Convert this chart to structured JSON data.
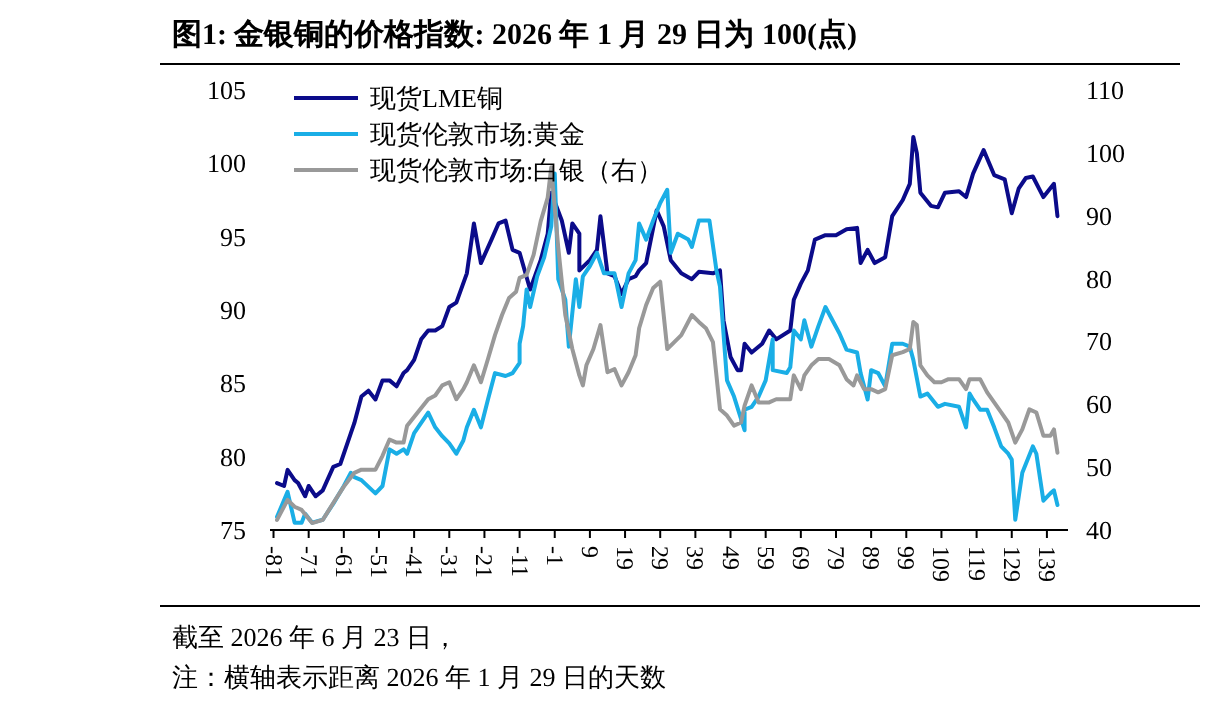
{
  "chart_data": {
    "type": "line",
    "title": "图1:  金银铜的价格指数: 2026 年 1 月 29 日为 100(点)",
    "xlim": [
      -82,
      145
    ],
    "xticks": [
      -81,
      -71,
      -61,
      -51,
      -41,
      -31,
      -21,
      -11,
      -1,
      9,
      19,
      29,
      39,
      49,
      59,
      69,
      79,
      89,
      99,
      109,
      119,
      129,
      139
    ],
    "ylim": [
      75,
      105
    ],
    "yticks": [
      75,
      80,
      85,
      90,
      95,
      100,
      105
    ],
    "y2lim": [
      40,
      110
    ],
    "y2ticks": [
      40,
      50,
      60,
      70,
      80,
      90,
      100,
      110
    ],
    "legend": "top left",
    "series": [
      {
        "name": "现货LME铜",
        "color": "#0b0b8a",
        "x": [
          -80,
          -78,
          -77,
          -75,
          -74,
          -72,
          -71,
          -69,
          -67,
          -64,
          -62,
          -59,
          -58,
          -56,
          -54,
          -52,
          -50,
          -48,
          -46,
          -44,
          -43,
          -41,
          -39,
          -37,
          -35,
          -33,
          -31,
          -29,
          -26,
          -24,
          -22,
          -19,
          -17,
          -15,
          -13,
          -11,
          -8,
          -5,
          -3,
          -2,
          1,
          3,
          4,
          6,
          6,
          9,
          11,
          12,
          14,
          16,
          18,
          20,
          22,
          23,
          25,
          28,
          30,
          32,
          35,
          38,
          40,
          44,
          46,
          47,
          49,
          51,
          52,
          53,
          55,
          58,
          60,
          62,
          66,
          67,
          69,
          71,
          73,
          76,
          79,
          82,
          85,
          86,
          88,
          90,
          93,
          95,
          98,
          100,
          101,
          102,
          103,
          106,
          108,
          110,
          114,
          116,
          118,
          121,
          124,
          127,
          129,
          131,
          133,
          135,
          138,
          141,
          142
        ],
        "values": [
          78.2,
          78.0,
          79.1,
          78.4,
          78.2,
          77.3,
          78.0,
          77.3,
          77.7,
          79.3,
          79.5,
          81.6,
          82.3,
          84.1,
          84.5,
          83.9,
          85.2,
          85.2,
          84.8,
          85.7,
          85.9,
          86.6,
          88.0,
          88.6,
          88.6,
          88.9,
          90.2,
          90.5,
          92.5,
          95.9,
          93.2,
          94.8,
          95.9,
          96.1,
          94.1,
          93.9,
          91.4,
          93.4,
          95.2,
          98.0,
          96.1,
          93.9,
          95.9,
          95.2,
          92.7,
          93.4,
          94.1,
          96.4,
          92.5,
          92.3,
          91.1,
          92.1,
          92.3,
          92.7,
          93.2,
          96.8,
          95.7,
          93.4,
          92.5,
          92.1,
          92.6,
          92.5,
          92.7,
          89.3,
          86.8,
          85.9,
          85.9,
          87.7,
          87.1,
          87.7,
          88.6,
          88.0,
          88.6,
          90.7,
          91.8,
          92.7,
          94.8,
          95.1,
          95.1,
          95.5,
          95.6,
          93.2,
          94.1,
          93.2,
          93.6,
          96.4,
          97.5,
          98.6,
          101.8,
          100.7,
          98.0,
          97.1,
          97.0,
          98.0,
          98.1,
          97.7,
          99.3,
          100.9,
          99.2,
          98.9,
          96.6,
          98.3,
          99.0,
          99.1,
          97.7,
          98.6,
          96.4
        ]
      },
      {
        "name": "现货伦敦市场:黄金",
        "color": "#1aaee6",
        "x": [
          -80,
          -77,
          -75,
          -73,
          -72,
          -70,
          -67,
          -64,
          -61,
          -59,
          -58,
          -56,
          -52,
          -50,
          -48,
          -46,
          -44,
          -43,
          -41,
          -39,
          -37,
          -35,
          -33,
          -31,
          -29,
          -27,
          -26,
          -24,
          -22,
          -20,
          -18,
          -15,
          -13,
          -11,
          -11,
          -10,
          -9,
          -8,
          -6,
          -4,
          -2,
          -1,
          0,
          2,
          3,
          5,
          6,
          7,
          9,
          11,
          13,
          16,
          18,
          20,
          22,
          23,
          25,
          27,
          29,
          31,
          32,
          34,
          37,
          38,
          40,
          41,
          43,
          45,
          46,
          48,
          50,
          53,
          53,
          55,
          57,
          59,
          61,
          61,
          65,
          66,
          67,
          69,
          70,
          72,
          74,
          76,
          78,
          80,
          82,
          85,
          86,
          88,
          89,
          91,
          93,
          95,
          98,
          100,
          101,
          103,
          105,
          108,
          110,
          114,
          116,
          117,
          118,
          120,
          122,
          124,
          126,
          128,
          129,
          130,
          132,
          135,
          136,
          138,
          140,
          141,
          142
        ],
        "values": [
          75.9,
          77.6,
          75.5,
          75.5,
          76.1,
          75.5,
          75.7,
          76.8,
          78.0,
          78.9,
          78.6,
          78.4,
          77.5,
          78.0,
          80.5,
          80.2,
          80.5,
          80.2,
          81.6,
          82.3,
          83.0,
          82.0,
          81.4,
          80.9,
          80.2,
          81.1,
          82.0,
          83.2,
          82.0,
          83.9,
          85.7,
          85.5,
          85.7,
          86.4,
          87.7,
          88.9,
          91.4,
          90.2,
          92.3,
          93.6,
          95.7,
          99.3,
          92.1,
          90.7,
          87.5,
          92.1,
          90.2,
          92.3,
          93.0,
          93.9,
          92.5,
          92.5,
          90.2,
          92.5,
          93.4,
          95.9,
          94.8,
          96.1,
          97.3,
          98.2,
          93.9,
          95.2,
          94.8,
          94.3,
          96.1,
          96.1,
          96.1,
          92.7,
          91.6,
          85.2,
          84.1,
          81.8,
          83.2,
          83.4,
          84.1,
          85.2,
          88.0,
          85.9,
          85.7,
          86.1,
          88.6,
          88.0,
          89.3,
          87.5,
          88.9,
          90.2,
          89.3,
          88.4,
          87.3,
          87.1,
          85.7,
          83.9,
          85.9,
          85.7,
          84.8,
          87.7,
          87.7,
          87.5,
          86.6,
          84.1,
          84.3,
          83.4,
          83.6,
          83.4,
          82.0,
          84.3,
          83.9,
          83.2,
          83.2,
          82.0,
          80.7,
          80.2,
          79.8,
          75.7,
          78.9,
          80.7,
          80.2,
          77.0,
          77.5,
          77.7,
          76.7
        ]
      },
      {
        "name": "现货伦敦市场:白银（右）",
        "color": "#999999",
        "axis": "y2",
        "x": [
          -80,
          -77,
          -75,
          -73,
          -70,
          -67,
          -64,
          -61,
          -58,
          -56,
          -52,
          -50,
          -48,
          -46,
          -44,
          -43,
          -40,
          -37,
          -35,
          -33,
          -31,
          -29,
          -27,
          -26,
          -24,
          -22,
          -20,
          -18,
          -16,
          -14,
          -12,
          -11,
          -9,
          -7,
          -5,
          -3,
          -2,
          0,
          2,
          4,
          6,
          7,
          8,
          10,
          12,
          14,
          16,
          18,
          20,
          22,
          23,
          25,
          27,
          29,
          31,
          33,
          35,
          38,
          40,
          42,
          44,
          46,
          48,
          50,
          52,
          53,
          55,
          57,
          60,
          62,
          66,
          67,
          69,
          70,
          72,
          74,
          77,
          80,
          82,
          84,
          85,
          87,
          89,
          91,
          93,
          95,
          98,
          100,
          101,
          102,
          103,
          105,
          107,
          109,
          111,
          114,
          116,
          117,
          120,
          122,
          124,
          126,
          128,
          130,
          132,
          134,
          136,
          138,
          140,
          141,
          142
        ],
        "values": [
          41.6,
          44.8,
          43.7,
          43.2,
          41.1,
          41.6,
          44.3,
          46.9,
          49.1,
          49.6,
          49.6,
          51.8,
          54.4,
          53.9,
          53.9,
          56.6,
          58.7,
          60.8,
          61.4,
          63.0,
          63.5,
          60.8,
          62.4,
          63.5,
          66.2,
          63.5,
          67.2,
          71.0,
          74.2,
          76.9,
          77.9,
          80.1,
          80.6,
          83.8,
          89.1,
          92.9,
          97.7,
          84.9,
          74.2,
          68.8,
          64.6,
          63.0,
          66.2,
          68.8,
          72.6,
          65.1,
          65.6,
          63.0,
          65.1,
          67.8,
          72.1,
          75.8,
          78.5,
          79.5,
          68.8,
          69.9,
          71.0,
          74.2,
          73.1,
          72.1,
          69.9,
          59.2,
          58.2,
          56.6,
          57.1,
          59.8,
          63.0,
          60.3,
          60.3,
          60.8,
          60.8,
          64.6,
          62.4,
          64.6,
          66.2,
          67.2,
          67.2,
          66.2,
          64.0,
          63.0,
          64.6,
          62.4,
          62.4,
          61.9,
          62.4,
          67.8,
          68.3,
          68.8,
          73.1,
          72.6,
          66.2,
          64.6,
          63.5,
          63.5,
          64.0,
          64.0,
          62.4,
          64.0,
          64.0,
          61.9,
          60.3,
          58.7,
          57.1,
          53.9,
          56.0,
          59.2,
          58.7,
          55.0,
          55.0,
          56.0,
          52.3
        ]
      }
    ],
    "annotations": [
      "截至 2026 年 6 月 23 日，",
      "注：横轴表示距离 2026 年 1 月 29 日的天数"
    ]
  }
}
